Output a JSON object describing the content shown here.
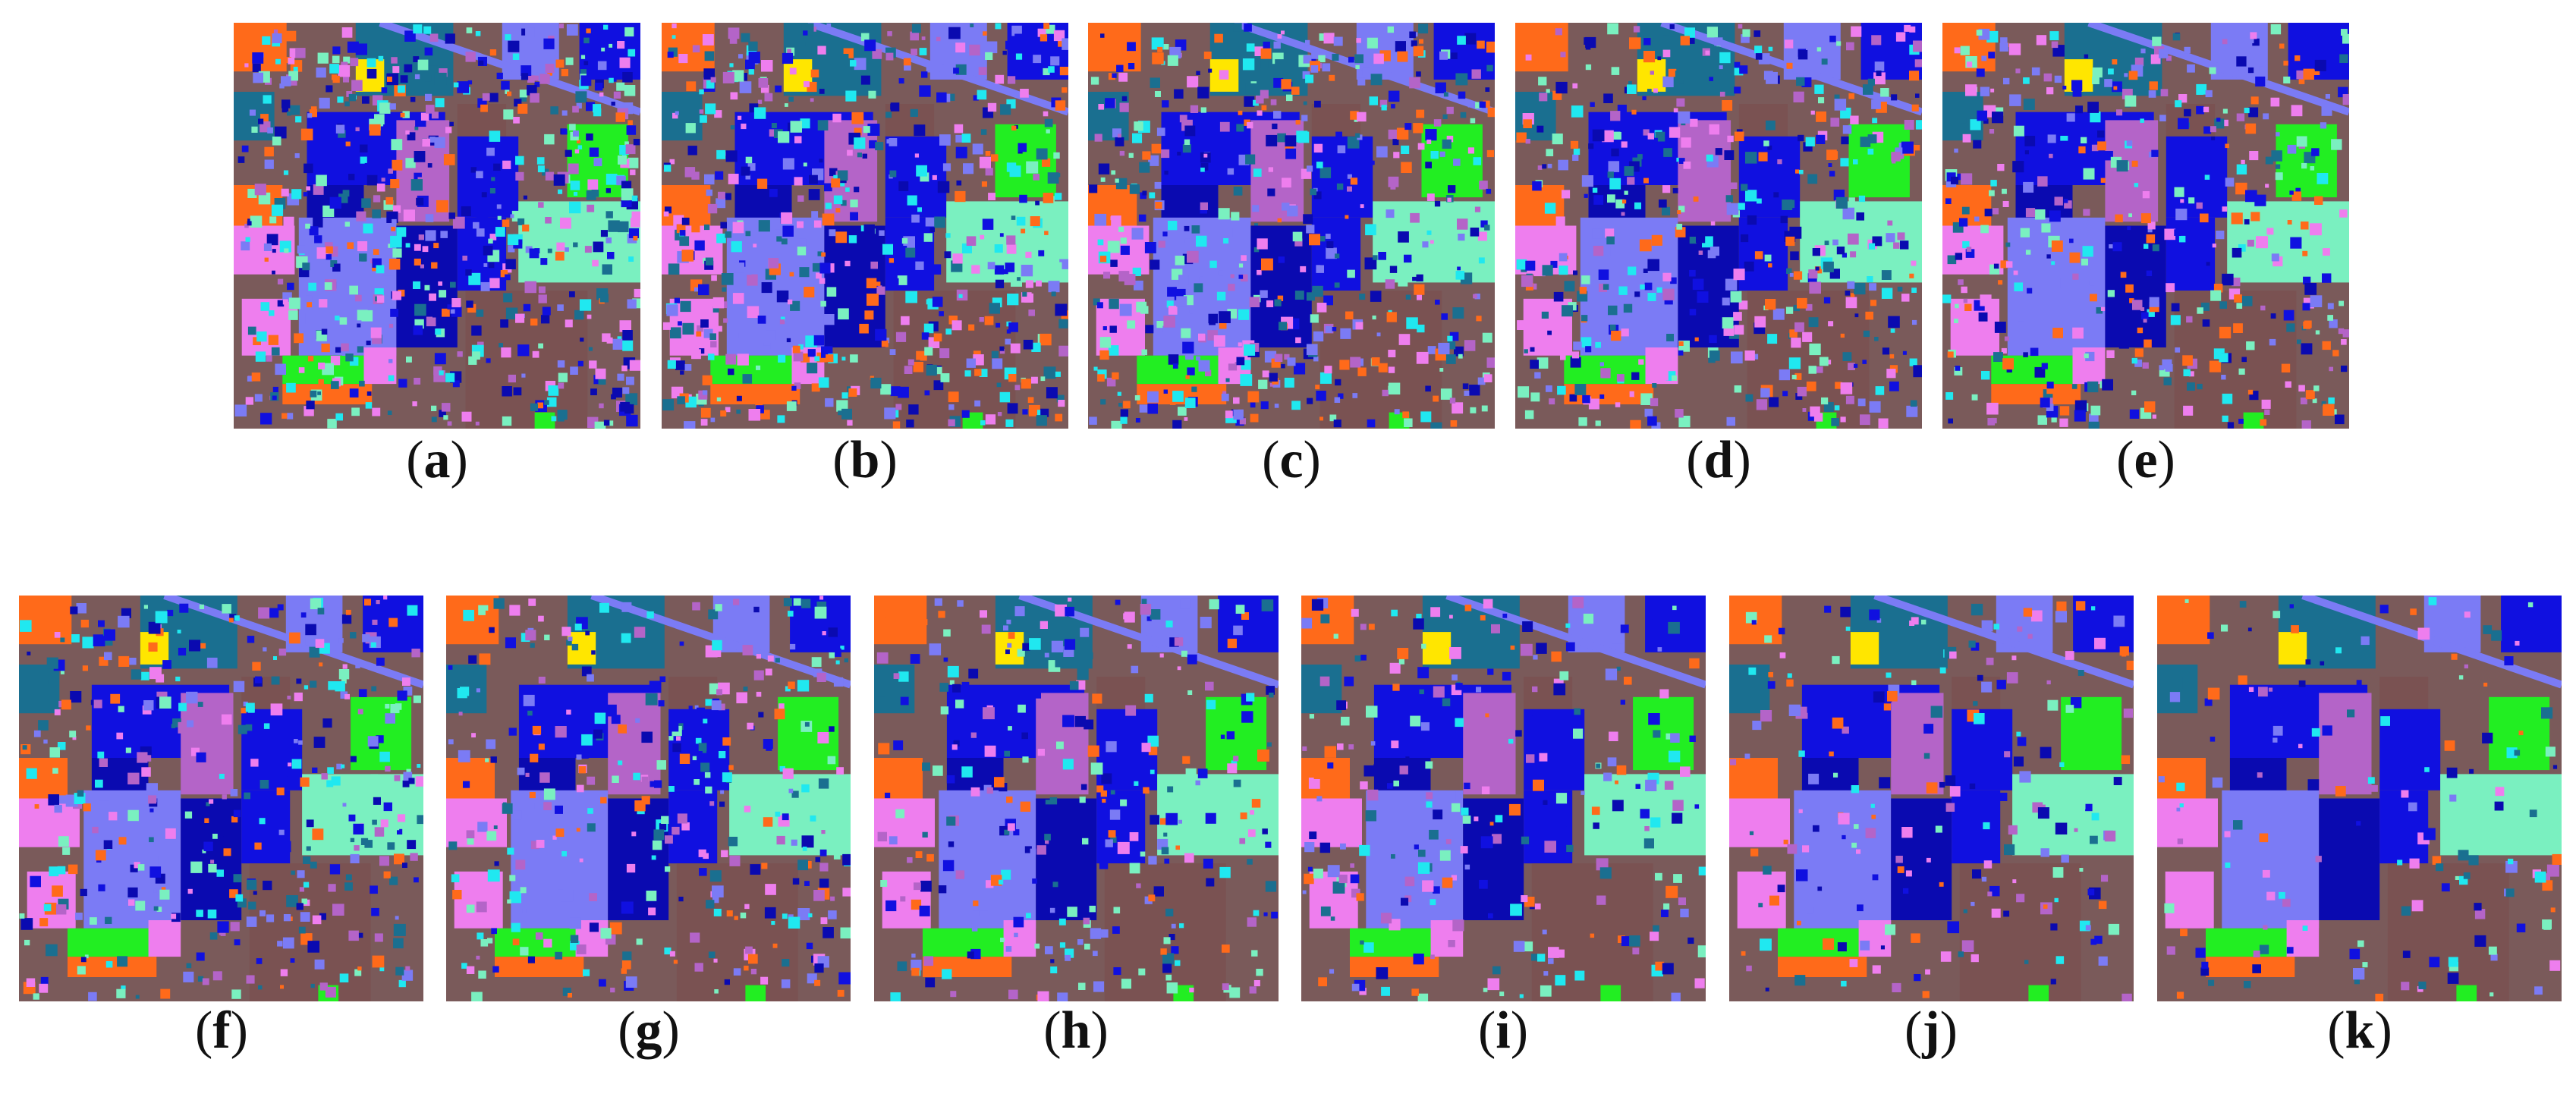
{
  "figure": {
    "panels": [
      {
        "label": "a"
      },
      {
        "label": "b"
      },
      {
        "label": "c"
      },
      {
        "label": "d"
      },
      {
        "label": "e"
      },
      {
        "label": "f"
      },
      {
        "label": "g"
      },
      {
        "label": "h"
      },
      {
        "label": "i"
      },
      {
        "label": "j"
      },
      {
        "label": "k"
      }
    ],
    "palette": {
      "background": "#7a5a5a",
      "orange": "#ff6a1a",
      "teal": "#1a6f90",
      "yellow": "#ffe600",
      "blue": "#1010e0",
      "darkblue": "#0a0ab0",
      "lavender": "#7b7bf5",
      "purple": "#b464c8",
      "green": "#22ee22",
      "pink": "#ee7eee",
      "mint": "#7af0c0",
      "cyan": "#20e8f0",
      "brown": "#7a5252"
    }
  }
}
